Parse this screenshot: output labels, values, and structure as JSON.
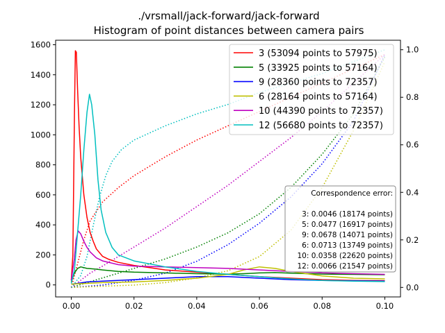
{
  "chart_data": {
    "type": "line",
    "title": "./vrsmall/jack-forward/jack-forward",
    "subtitle": "Histogram of point distances between camera pairs",
    "xlabel": "",
    "ylabel": "",
    "y2label": "",
    "xlim": [
      -0.005,
      0.105
    ],
    "ylim": [
      -80,
      1630
    ],
    "y2lim": [
      -0.04,
      1.04
    ],
    "x_ticks": [
      "0.00",
      "0.02",
      "0.04",
      "0.06",
      "0.08",
      "0.10"
    ],
    "y_ticks": [
      "0",
      "200",
      "400",
      "600",
      "800",
      "1000",
      "1200",
      "1400",
      "1600"
    ],
    "y2_ticks": [
      "0.0",
      "0.2",
      "0.4",
      "0.6",
      "0.8",
      "1.0"
    ],
    "grid": false,
    "legend_position": "top-right",
    "series": [
      {
        "name": "3 (53094 points to 57975)",
        "color": "#ff0000",
        "hist": [
          [
            0,
            30
          ],
          [
            0.0005,
            200
          ],
          [
            0.001,
            1150
          ],
          [
            0.0013,
            1560
          ],
          [
            0.0016,
            1550
          ],
          [
            0.002,
            1300
          ],
          [
            0.0025,
            1050
          ],
          [
            0.003,
            850
          ],
          [
            0.004,
            600
          ],
          [
            0.005,
            450
          ],
          [
            0.006,
            350
          ],
          [
            0.007,
            290
          ],
          [
            0.008,
            240
          ],
          [
            0.01,
            190
          ],
          [
            0.012,
            170
          ],
          [
            0.015,
            150
          ],
          [
            0.02,
            130
          ],
          [
            0.025,
            115
          ],
          [
            0.03,
            100
          ],
          [
            0.04,
            85
          ],
          [
            0.05,
            70
          ],
          [
            0.06,
            55
          ],
          [
            0.07,
            45
          ],
          [
            0.08,
            35
          ],
          [
            0.09,
            30
          ],
          [
            0.1,
            28
          ]
        ],
        "cdf": [
          [
            0,
            0
          ],
          [
            0.002,
            0.1
          ],
          [
            0.004,
            0.2
          ],
          [
            0.006,
            0.28
          ],
          [
            0.01,
            0.36
          ],
          [
            0.015,
            0.42
          ],
          [
            0.02,
            0.47
          ],
          [
            0.03,
            0.55
          ],
          [
            0.04,
            0.62
          ],
          [
            0.05,
            0.68
          ],
          [
            0.06,
            0.74
          ],
          [
            0.07,
            0.8
          ],
          [
            0.08,
            0.86
          ],
          [
            0.09,
            0.92
          ],
          [
            0.1,
            0.98
          ]
        ]
      },
      {
        "name": "5 (33925 points to 57164)",
        "color": "#008000",
        "hist": [
          [
            0,
            20
          ],
          [
            0.001,
            80
          ],
          [
            0.002,
            110
          ],
          [
            0.003,
            120
          ],
          [
            0.005,
            110
          ],
          [
            0.008,
            105
          ],
          [
            0.01,
            100
          ],
          [
            0.015,
            90
          ],
          [
            0.02,
            85
          ],
          [
            0.03,
            80
          ],
          [
            0.04,
            75
          ],
          [
            0.05,
            72
          ],
          [
            0.055,
            75
          ],
          [
            0.06,
            80
          ],
          [
            0.065,
            82
          ],
          [
            0.07,
            78
          ],
          [
            0.08,
            72
          ],
          [
            0.09,
            70
          ],
          [
            0.1,
            68
          ]
        ],
        "cdf": [
          [
            0,
            0
          ],
          [
            0.005,
            0.02
          ],
          [
            0.01,
            0.04
          ],
          [
            0.02,
            0.08
          ],
          [
            0.03,
            0.12
          ],
          [
            0.04,
            0.17
          ],
          [
            0.05,
            0.23
          ],
          [
            0.06,
            0.31
          ],
          [
            0.07,
            0.42
          ],
          [
            0.08,
            0.56
          ],
          [
            0.09,
            0.73
          ],
          [
            0.1,
            0.97
          ]
        ]
      },
      {
        "name": "9 (28360 points to 72357)",
        "color": "#0000ff",
        "hist": [
          [
            0,
            5
          ],
          [
            0.002,
            10
          ],
          [
            0.005,
            20
          ],
          [
            0.01,
            25
          ],
          [
            0.02,
            35
          ],
          [
            0.03,
            45
          ],
          [
            0.04,
            55
          ],
          [
            0.05,
            55
          ],
          [
            0.06,
            45
          ],
          [
            0.07,
            35
          ],
          [
            0.08,
            30
          ],
          [
            0.09,
            27
          ],
          [
            0.1,
            25
          ]
        ],
        "cdf": [
          [
            0,
            0
          ],
          [
            0.01,
            0.01
          ],
          [
            0.02,
            0.03
          ],
          [
            0.03,
            0.06
          ],
          [
            0.04,
            0.11
          ],
          [
            0.05,
            0.18
          ],
          [
            0.06,
            0.27
          ],
          [
            0.07,
            0.38
          ],
          [
            0.08,
            0.52
          ],
          [
            0.09,
            0.7
          ],
          [
            0.1,
            0.98
          ]
        ]
      },
      {
        "name": "6 (28164 points to 57164)",
        "color": "#bfbf00",
        "hist": [
          [
            0,
            5
          ],
          [
            0.002,
            8
          ],
          [
            0.005,
            10
          ],
          [
            0.01,
            15
          ],
          [
            0.02,
            20
          ],
          [
            0.03,
            30
          ],
          [
            0.04,
            45
          ],
          [
            0.05,
            70
          ],
          [
            0.055,
            100
          ],
          [
            0.06,
            120
          ],
          [
            0.065,
            110
          ],
          [
            0.07,
            90
          ],
          [
            0.08,
            60
          ],
          [
            0.09,
            45
          ],
          [
            0.1,
            40
          ]
        ],
        "cdf": [
          [
            0,
            0
          ],
          [
            0.01,
            0.005
          ],
          [
            0.02,
            0.01
          ],
          [
            0.03,
            0.02
          ],
          [
            0.04,
            0.04
          ],
          [
            0.05,
            0.07
          ],
          [
            0.06,
            0.13
          ],
          [
            0.07,
            0.24
          ],
          [
            0.08,
            0.42
          ],
          [
            0.09,
            0.66
          ],
          [
            0.1,
            0.95
          ]
        ]
      },
      {
        "name": "10 (44390 points to 72357)",
        "color": "#bf00bf",
        "hist": [
          [
            0,
            30
          ],
          [
            0.001,
            180
          ],
          [
            0.0015,
            300
          ],
          [
            0.0022,
            360
          ],
          [
            0.003,
            340
          ],
          [
            0.004,
            290
          ],
          [
            0.005,
            250
          ],
          [
            0.006,
            220
          ],
          [
            0.008,
            180
          ],
          [
            0.01,
            160
          ],
          [
            0.015,
            135
          ],
          [
            0.02,
            125
          ],
          [
            0.03,
            120
          ],
          [
            0.04,
            115
          ],
          [
            0.05,
            110
          ],
          [
            0.06,
            100
          ],
          [
            0.07,
            90
          ],
          [
            0.08,
            80
          ],
          [
            0.09,
            75
          ],
          [
            0.1,
            70
          ]
        ],
        "cdf": [
          [
            0,
            0
          ],
          [
            0.003,
            0.03
          ],
          [
            0.006,
            0.06
          ],
          [
            0.01,
            0.09
          ],
          [
            0.02,
            0.17
          ],
          [
            0.03,
            0.25
          ],
          [
            0.04,
            0.34
          ],
          [
            0.05,
            0.43
          ],
          [
            0.06,
            0.53
          ],
          [
            0.07,
            0.63
          ],
          [
            0.08,
            0.74
          ],
          [
            0.09,
            0.86
          ],
          [
            0.1,
            0.98
          ]
        ]
      },
      {
        "name": "12 (56680 points to 72357)",
        "color": "#00bfbf",
        "hist": [
          [
            0,
            10
          ],
          [
            0.001,
            100
          ],
          [
            0.002,
            350
          ],
          [
            0.003,
            600
          ],
          [
            0.004,
            900
          ],
          [
            0.005,
            1150
          ],
          [
            0.0058,
            1270
          ],
          [
            0.0065,
            1200
          ],
          [
            0.0075,
            1000
          ],
          [
            0.0085,
            700
          ],
          [
            0.0095,
            500
          ],
          [
            0.011,
            350
          ],
          [
            0.013,
            250
          ],
          [
            0.015,
            200
          ],
          [
            0.02,
            160
          ],
          [
            0.03,
            120
          ],
          [
            0.04,
            90
          ],
          [
            0.05,
            70
          ],
          [
            0.06,
            55
          ],
          [
            0.07,
            40
          ],
          [
            0.08,
            30
          ],
          [
            0.09,
            25
          ],
          [
            0.1,
            22
          ]
        ],
        "cdf": [
          [
            0,
            0
          ],
          [
            0.003,
            0.05
          ],
          [
            0.005,
            0.13
          ],
          [
            0.007,
            0.26
          ],
          [
            0.009,
            0.38
          ],
          [
            0.011,
            0.47
          ],
          [
            0.013,
            0.53
          ],
          [
            0.016,
            0.58
          ],
          [
            0.02,
            0.62
          ],
          [
            0.03,
            0.68
          ],
          [
            0.04,
            0.73
          ],
          [
            0.05,
            0.77
          ],
          [
            0.06,
            0.82
          ],
          [
            0.07,
            0.86
          ],
          [
            0.08,
            0.9
          ],
          [
            0.09,
            0.95
          ],
          [
            0.1,
            1.0
          ]
        ]
      }
    ],
    "annotation": {
      "title": "Correspondence error:",
      "lines": [
        "3: 0.0046 (18174 points)",
        "5: 0.0477 (16917 points)",
        "9: 0.0678 (14071 points)",
        "6: 0.0713 (13749 points)",
        "10: 0.0358 (22620 points)",
        "12: 0.0066 (21547 points)"
      ]
    }
  }
}
